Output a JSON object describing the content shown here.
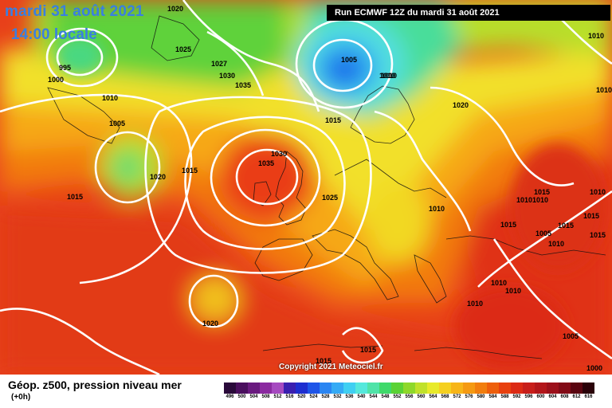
{
  "header": {
    "date_title": "mardi 31 août 2021",
    "time_title": "14:00 locale",
    "run_info": "Run ECMWF 12Z du mardi 31 août 2021"
  },
  "map": {
    "copyright": "Copyright 2021 Meteociel.fr",
    "isobar_labels": [
      "1020",
      "995",
      "1000",
      "1025",
      "1027",
      "1030",
      "1035",
      "1005",
      "1010",
      "1010",
      "1005",
      "1020",
      "1015",
      "1030",
      "1035",
      "1025",
      "1015",
      "1010",
      "1020",
      "1015",
      "1010",
      "1015",
      "1005",
      "1010",
      "1015",
      "1010",
      "1015",
      "1015",
      "1020",
      "1015",
      "1015",
      "1005",
      "1000",
      "1010",
      "1010",
      "1010",
      "1010",
      "1010",
      "1010",
      "1015",
      "1010"
    ]
  },
  "footer": {
    "variable_title": "Géop. z500, pression niveau mer",
    "lead_time": "(+0h)"
  },
  "legend": {
    "values": [
      "496",
      "500",
      "504",
      "508",
      "512",
      "516",
      "520",
      "524",
      "528",
      "532",
      "536",
      "540",
      "544",
      "548",
      "552",
      "556",
      "560",
      "564",
      "568",
      "572",
      "576",
      "580",
      "584",
      "588",
      "592",
      "596",
      "600",
      "604",
      "608",
      "612",
      "616"
    ],
    "colors": [
      "#2a0a3a",
      "#4a0f5e",
      "#6a1a7f",
      "#8b2aa0",
      "#a64ac0",
      "#3a1fb0",
      "#1e2ed0",
      "#1f55e8",
      "#2a85f2",
      "#35aaf5",
      "#40cff2",
      "#55e8dc",
      "#4fe3a8",
      "#3fd96a",
      "#5ad235",
      "#8ed82a",
      "#c0e12a",
      "#e8ea2a",
      "#f5d020",
      "#f7b518",
      "#f59a12",
      "#f27e0e",
      "#ee5f0c",
      "#e8400e",
      "#dc2a14",
      "#c81e1a",
      "#b3161a",
      "#9c101a",
      "#820a16",
      "#5a0510",
      "#2a0208"
    ]
  }
}
